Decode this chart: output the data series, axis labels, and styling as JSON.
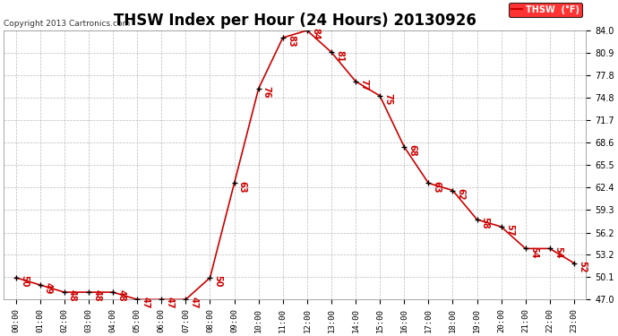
{
  "title": "THSW Index per Hour (24 Hours) 20130926",
  "copyright": "Copyright 2013 Cartronics.com",
  "legend_label": "THSW  (°F)",
  "hours": [
    0,
    1,
    2,
    3,
    4,
    5,
    6,
    7,
    8,
    9,
    10,
    11,
    12,
    13,
    14,
    15,
    16,
    17,
    18,
    19,
    20,
    21,
    22,
    23
  ],
  "values": [
    50,
    49,
    48,
    48,
    48,
    47,
    47,
    47,
    50,
    63,
    76,
    83,
    84,
    81,
    77,
    75,
    68,
    63,
    62,
    58,
    57,
    54,
    54,
    52
  ],
  "ylim_min": 47.0,
  "ylim_max": 84.0,
  "yticks": [
    47.0,
    50.1,
    53.2,
    56.2,
    59.3,
    62.4,
    65.5,
    68.6,
    71.7,
    74.8,
    77.8,
    80.9,
    84.0
  ],
  "line_color": "#cc0000",
  "marker_color": "#000000",
  "label_color": "#cc0000",
  "bg_color": "#ffffff",
  "grid_color": "#bbbbbb",
  "title_fontsize": 12,
  "label_fontsize": 7,
  "tick_fontsize": 6.5,
  "copyright_fontsize": 6.5
}
